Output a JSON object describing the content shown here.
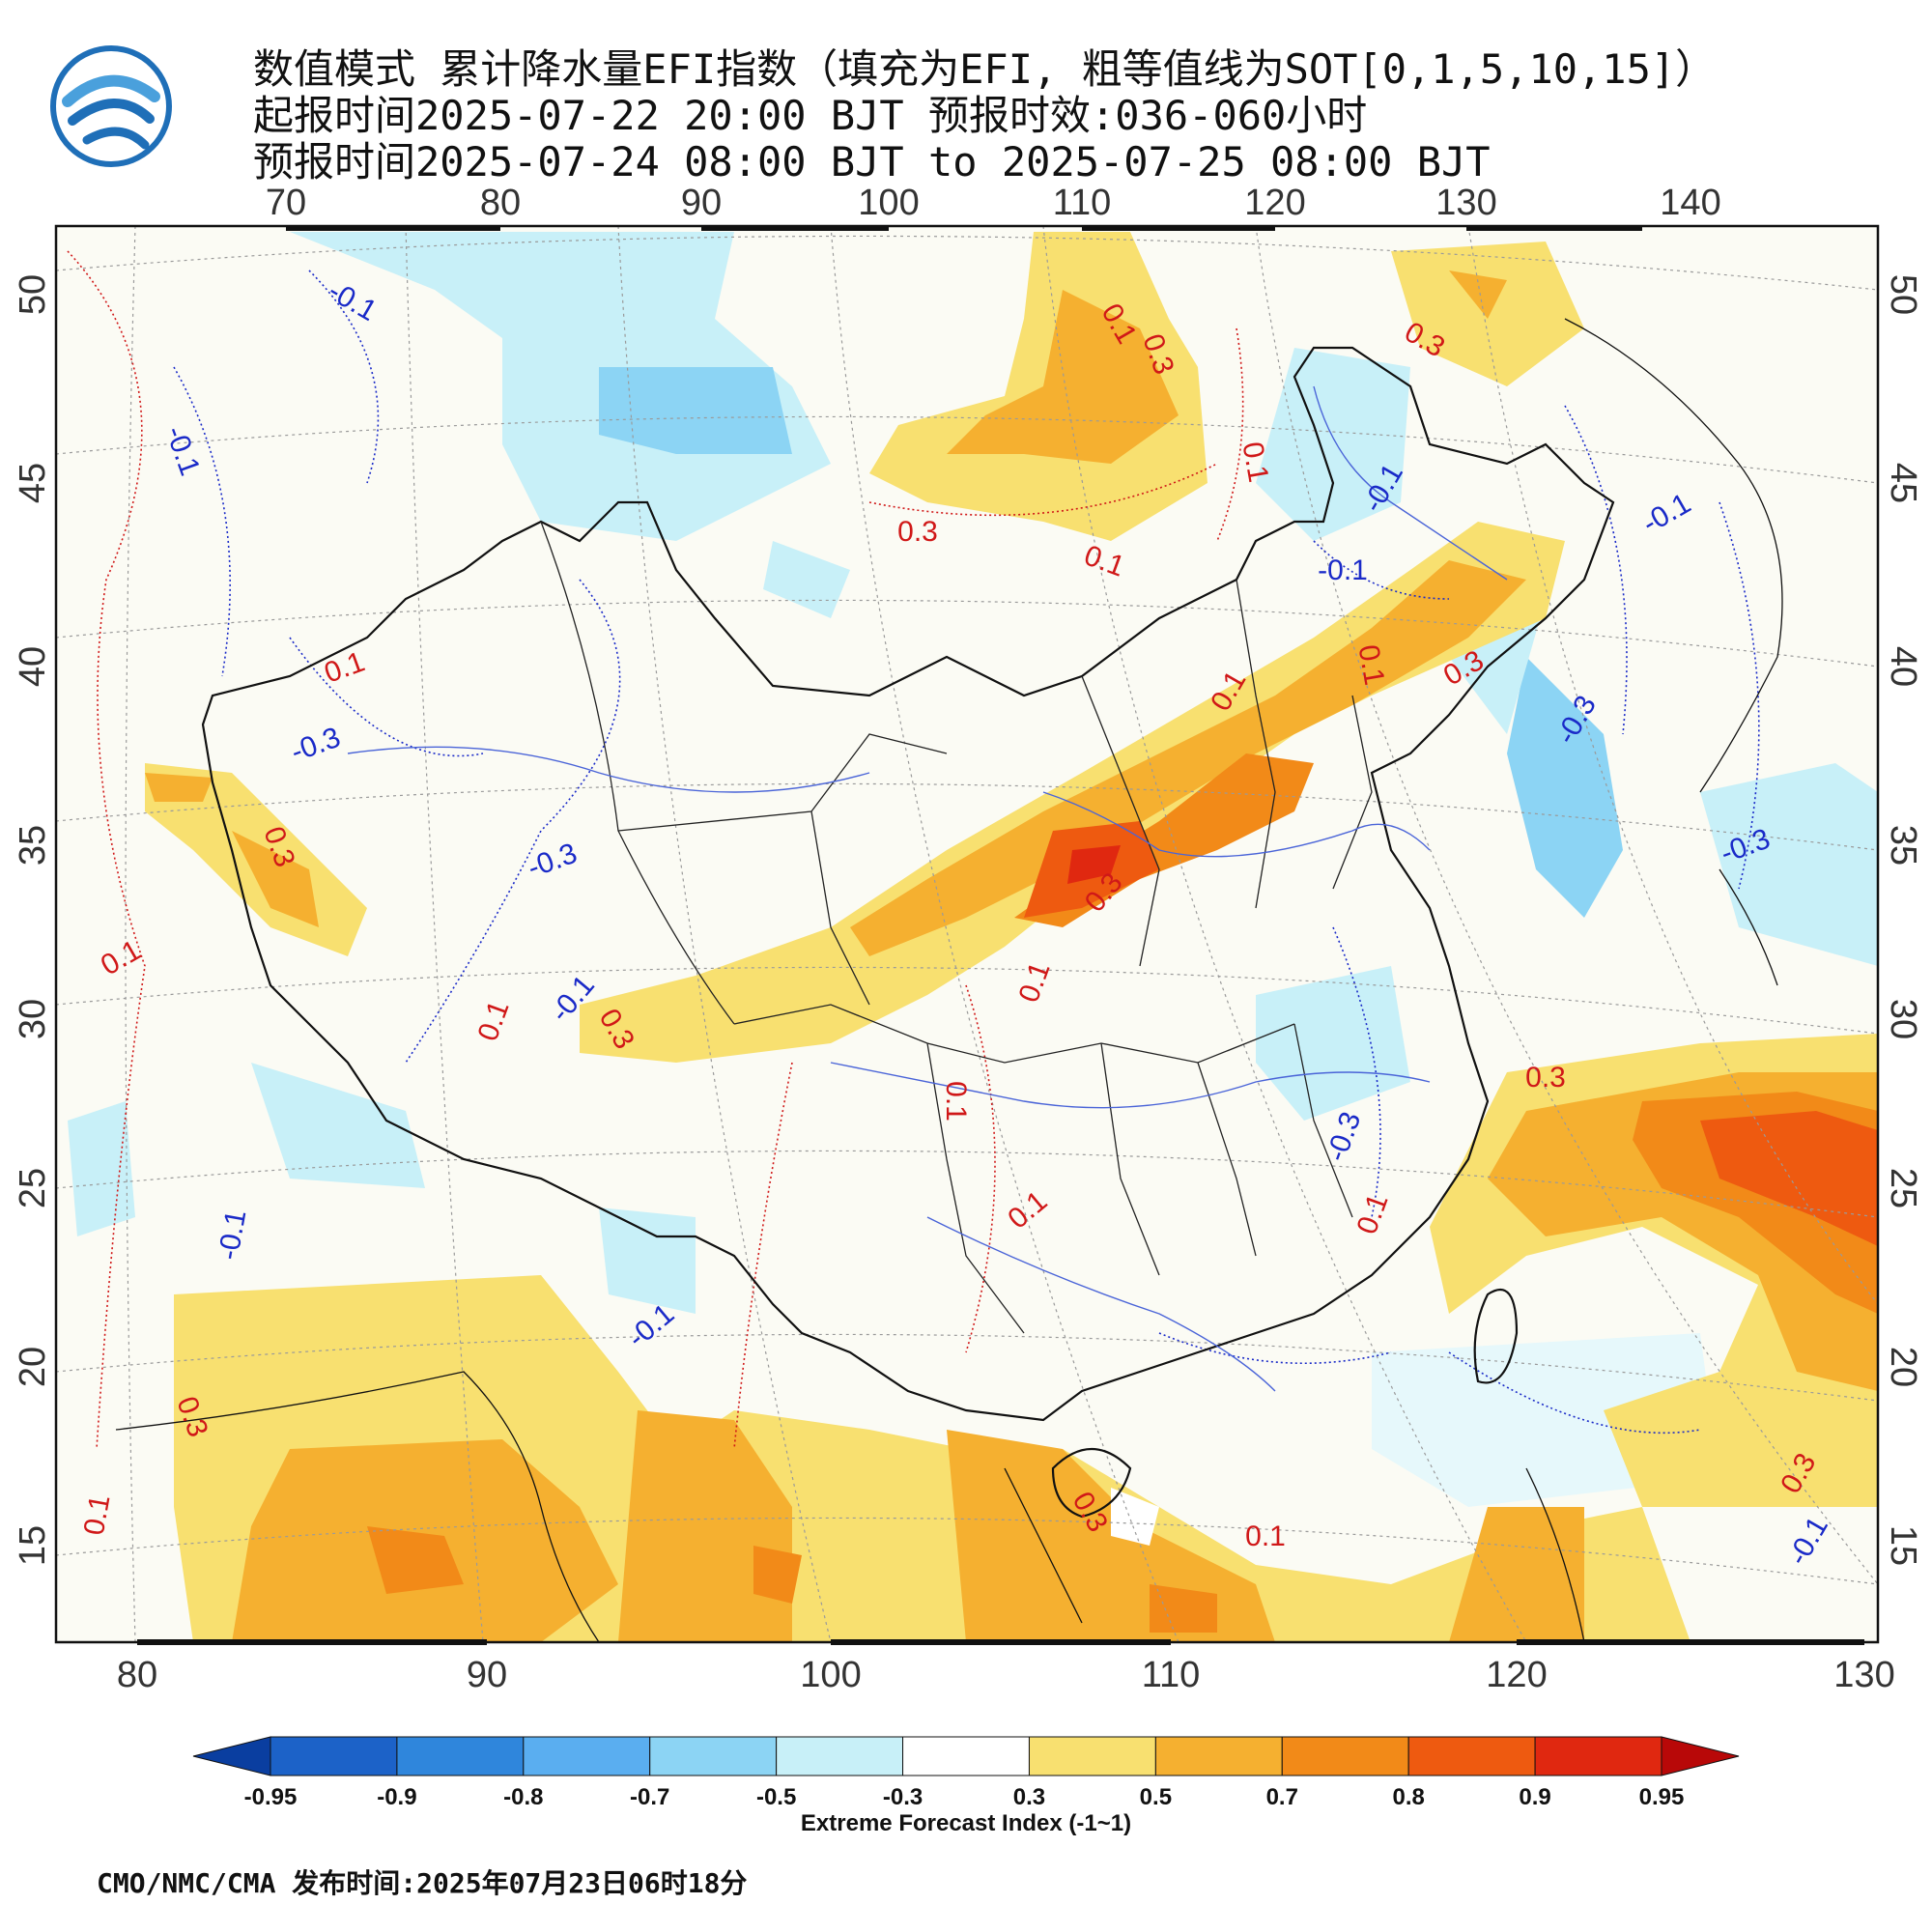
{
  "title": {
    "line1": "数值模式 累计降水量EFI指数（填充为EFI, 粗等值线为SOT[0,1,5,10,15]）",
    "line2": "起报时间2025-07-22 20:00 BJT 预报时效:036-060小时",
    "line3": "预报时间2025-07-24 08:00 BJT to 2025-07-25 08:00 BJT"
  },
  "logo": {
    "icon": "cma-weather-logo",
    "colors": [
      "#1f6fb8",
      "#4aa0dc"
    ]
  },
  "axes": {
    "top_lon_ticks": [
      "70",
      "80",
      "90",
      "100",
      "110",
      "120",
      "130",
      "140"
    ],
    "bottom_lon_ticks": [
      "80",
      "90",
      "100",
      "110",
      "120",
      "130"
    ],
    "left_lat_ticks": [
      "50",
      "45",
      "40",
      "35",
      "30",
      "25",
      "20",
      "15"
    ],
    "right_lat_ticks": [
      "50",
      "45",
      "40",
      "35",
      "30",
      "25",
      "20",
      "15"
    ]
  },
  "contour_labels": [
    {
      "text": "-0.1",
      "color": "#1a2ac8"
    },
    {
      "text": "-0.1",
      "color": "#1a2ac8"
    },
    {
      "text": "0.3",
      "color": "#d01818"
    },
    {
      "text": "0.3",
      "color": "#d01818"
    },
    {
      "text": "0.1",
      "color": "#d01818"
    },
    {
      "text": "0.1",
      "color": "#d01818"
    },
    {
      "text": "-0.1",
      "color": "#1a2ac8"
    },
    {
      "text": "0.1",
      "color": "#d01818"
    },
    {
      "text": "-0.1",
      "color": "#1a2ac8"
    },
    {
      "text": "0.3",
      "color": "#d01818"
    },
    {
      "text": "0.1",
      "color": "#d01818"
    },
    {
      "text": "0.1",
      "color": "#d01818"
    },
    {
      "text": "-0.1",
      "color": "#1a2ac8"
    },
    {
      "text": "0.3",
      "color": "#d01818"
    },
    {
      "text": "-0.3",
      "color": "#1a2ac8"
    },
    {
      "text": "-0.3",
      "color": "#1a2ac8"
    },
    {
      "text": "0.1",
      "color": "#d01818"
    },
    {
      "text": "0.3",
      "color": "#d01818"
    },
    {
      "text": "-0.3",
      "color": "#1a2ac8"
    },
    {
      "text": "0.1",
      "color": "#d01818"
    },
    {
      "text": "0.3",
      "color": "#d01818"
    },
    {
      "text": "0.1",
      "color": "#d01818"
    },
    {
      "text": "-0.1",
      "color": "#1a2ac8"
    },
    {
      "text": "0.3",
      "color": "#d01818"
    },
    {
      "text": "0.1",
      "color": "#d01818"
    },
    {
      "text": "-0.3",
      "color": "#1a2ac8"
    },
    {
      "text": "0.3",
      "color": "#d01818"
    },
    {
      "text": "0.1",
      "color": "#d01818"
    },
    {
      "text": "0.1",
      "color": "#d01818"
    },
    {
      "text": "-0.1",
      "color": "#1a2ac8"
    },
    {
      "text": "0.3",
      "color": "#d01818"
    },
    {
      "text": "-0.3",
      "color": "#1a2ac8"
    },
    {
      "text": "0.1",
      "color": "#d01818"
    },
    {
      "text": "0.3",
      "color": "#d01818"
    },
    {
      "text": "0.1",
      "color": "#d01818"
    },
    {
      "text": "-0.1",
      "color": "#1a2ac8"
    },
    {
      "text": "0.3",
      "color": "#d01818"
    },
    {
      "text": "0.1",
      "color": "#d01818"
    },
    {
      "text": "-0.1",
      "color": "#1a2ac8"
    }
  ],
  "colorbar": {
    "tick_labels": [
      "-0.95",
      "-0.9",
      "-0.8",
      "-0.7",
      "-0.5",
      "-0.3",
      "0.3",
      "0.5",
      "0.7",
      "0.8",
      "0.9",
      "0.95"
    ],
    "colors": [
      "#0a3ea0",
      "#1c62c8",
      "#2f86dc",
      "#5aaef0",
      "#8cd4f4",
      "#c8f0f8",
      "#ffffff",
      "#f8e070",
      "#f5b030",
      "#f28a18",
      "#ee5a10",
      "#e02810",
      "#b80808"
    ],
    "title": "Extreme Forecast Index (-1~1)"
  },
  "footer": "CMO/NMC/CMA 发布时间:2025年07月23日06时18分"
}
